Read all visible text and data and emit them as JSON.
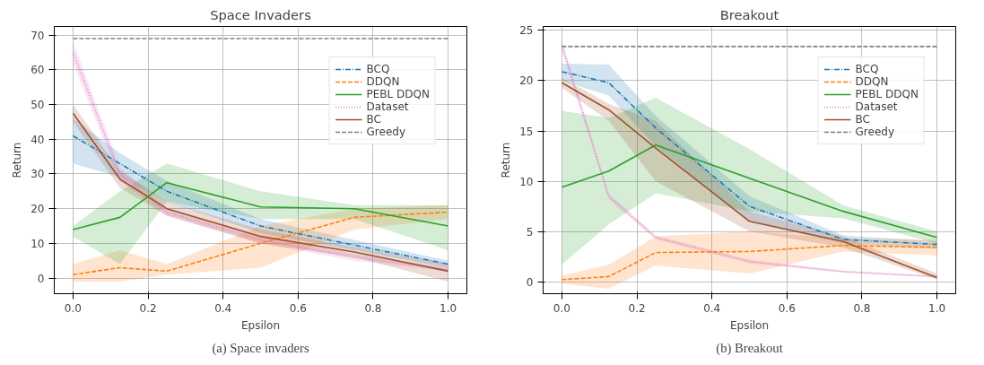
{
  "chart_data": [
    {
      "type": "line",
      "title": "Space Invaders",
      "xlabel": "Epsilon",
      "ylabel": "Return",
      "legend": "top right",
      "grid": true,
      "xlim": [
        -0.05,
        1.05
      ],
      "ylim": [
        -4.5,
        72.5
      ],
      "xticks": [
        {
          "value": 0,
          "label": "0.0"
        },
        {
          "value": 0.2,
          "label": "0.2"
        },
        {
          "value": 0.4,
          "label": "0.4"
        },
        {
          "value": 0.6,
          "label": "0.6"
        },
        {
          "value": 0.8,
          "label": "0.8"
        },
        {
          "value": 1,
          "label": "1.0"
        }
      ],
      "yticks": [
        0,
        10,
        20,
        30,
        40,
        50,
        60,
        70
      ],
      "x": [
        0,
        0.125,
        0.25,
        0.5,
        0.75,
        1.0
      ],
      "series": [
        {
          "name": "BCQ",
          "color": "#1f77b4",
          "line_style": "dashdot",
          "values": [
            41,
            33,
            25,
            15,
            9.5,
            4
          ],
          "lower": [
            33,
            29,
            22,
            13,
            8,
            3
          ],
          "upper": [
            46,
            36,
            28,
            17,
            11,
            5
          ]
        },
        {
          "name": "DDQN",
          "color": "#ff7f0e",
          "line_style": "dashed",
          "values": [
            1,
            3,
            2,
            10,
            17.5,
            19
          ],
          "lower": [
            -1,
            -1,
            1,
            3,
            14,
            17
          ],
          "upper": [
            4,
            8,
            4,
            15,
            20,
            21
          ]
        },
        {
          "name": "PEBL DDQN",
          "color": "#2ca02c",
          "line_style": "solid",
          "values": [
            14,
            17.5,
            27.5,
            20.5,
            20,
            15
          ],
          "lower": [
            12,
            4,
            22,
            17,
            17,
            8
          ],
          "upper": [
            15,
            25,
            33,
            25,
            21,
            21
          ]
        },
        {
          "name": "Dataset",
          "color": "#e377c2",
          "line_style": "dotted",
          "values": [
            65,
            30,
            19,
            11,
            6,
            2.5
          ],
          "lower": [
            62,
            28,
            18,
            10,
            5,
            2
          ],
          "upper": [
            68,
            32,
            20,
            12,
            7,
            3
          ]
        },
        {
          "name": "BC",
          "color": "#a0522d",
          "line_style": "solid",
          "values": [
            47.5,
            28.5,
            20,
            12,
            7.5,
            2
          ],
          "lower": [
            45,
            26,
            18,
            10,
            6,
            -1
          ],
          "upper": [
            50,
            31,
            22,
            14,
            9,
            4
          ]
        },
        {
          "name": "Greedy",
          "color": "#808080",
          "line_style": "dashed",
          "values": [
            69,
            69,
            69,
            69,
            69,
            69
          ]
        }
      ],
      "annotations": [
        "(a) Space invaders"
      ]
    },
    {
      "type": "line",
      "title": "Breakout",
      "xlabel": "Epsilon",
      "ylabel": "Return",
      "legend": "top right",
      "grid": true,
      "xlim": [
        -0.05,
        1.05
      ],
      "ylim": [
        -1.2,
        25.4
      ],
      "xticks": [
        {
          "value": 0,
          "label": "0.0"
        },
        {
          "value": 0.2,
          "label": "0.2"
        },
        {
          "value": 0.4,
          "label": "0.4"
        },
        {
          "value": 0.6,
          "label": "0.6"
        },
        {
          "value": 0.8,
          "label": "0.8"
        },
        {
          "value": 1,
          "label": "1.0"
        }
      ],
      "yticks": [
        0,
        5,
        10,
        15,
        20,
        25
      ],
      "x": [
        0,
        0.125,
        0.25,
        0.5,
        0.75,
        1.0
      ],
      "series": [
        {
          "name": "BCQ",
          "color": "#1f77b4",
          "line_style": "dashdot",
          "values": [
            20.9,
            19.8,
            15.3,
            7.5,
            4.2,
            3.7
          ],
          "lower": [
            20,
            18.5,
            13.5,
            6,
            3.8,
            3.3
          ],
          "upper": [
            21.7,
            21.6,
            16.5,
            8.5,
            4.6,
            4.0
          ]
        },
        {
          "name": "DDQN",
          "color": "#ff7f0e",
          "line_style": "dashed",
          "values": [
            0.2,
            0.5,
            2.9,
            3.0,
            3.6,
            3.4
          ],
          "lower": [
            -0.2,
            -0.7,
            1.6,
            0.8,
            3,
            2.6
          ],
          "upper": [
            0.6,
            1.7,
            4.5,
            5,
            4.3,
            4.2
          ]
        },
        {
          "name": "PEBL DDQN",
          "color": "#2ca02c",
          "line_style": "solid",
          "values": [
            9.4,
            11,
            13.6,
            10.3,
            7,
            4.4
          ],
          "lower": [
            1.7,
            5.7,
            8.8,
            7,
            6.3,
            3.8
          ],
          "upper": [
            17,
            16.3,
            18.3,
            13.2,
            7.6,
            5
          ]
        },
        {
          "name": "Dataset",
          "color": "#e377c2",
          "line_style": "dotted",
          "values": [
            23.5,
            8.5,
            4.4,
            2.0,
            1.0,
            0.5
          ],
          "lower": [
            23,
            8.2,
            4.2,
            1.8,
            0.9,
            0.4
          ],
          "upper": [
            24,
            8.8,
            4.6,
            2.2,
            1.1,
            0.6
          ]
        },
        {
          "name": "BC",
          "color": "#a0522d",
          "line_style": "solid",
          "values": [
            19.8,
            17.1,
            13.3,
            6,
            4,
            0.4
          ],
          "lower": [
            19.3,
            16,
            10,
            5,
            3.4,
            0.2
          ],
          "upper": [
            20.3,
            17.7,
            16,
            7,
            4.5,
            0.8
          ]
        },
        {
          "name": "Greedy",
          "color": "#808080",
          "line_style": "dashed",
          "values": [
            23.4,
            23.4,
            23.4,
            23.4,
            23.4,
            23.4
          ]
        }
      ],
      "annotations": [
        "(b) Breakout"
      ]
    }
  ]
}
